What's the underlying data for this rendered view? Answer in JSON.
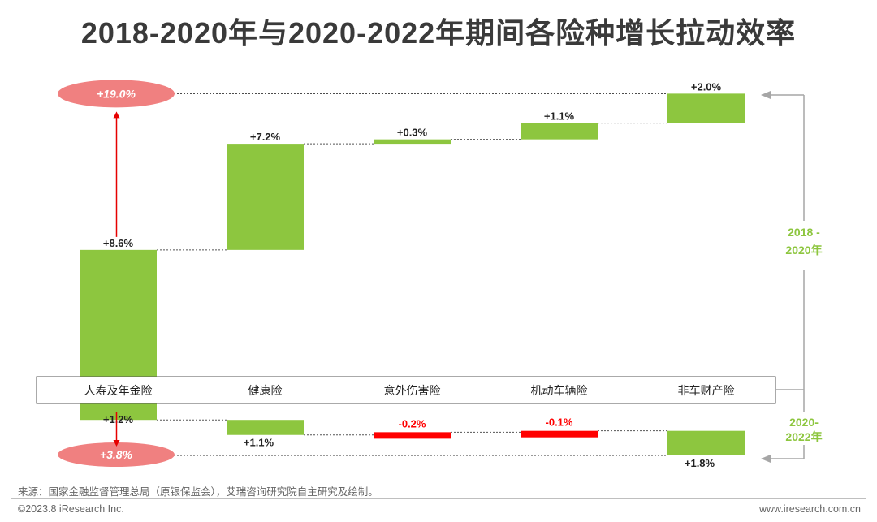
{
  "title": "2018-2020年与2020-2022年期间各险种增长拉动效率",
  "source": "来源：国家金融监督管理总局（原银保监会），艾瑞咨询研究院自主研究及绘制。",
  "copyright": "©2023.8 iResearch Inc.",
  "site": "www.iresearch.com.cn",
  "colors": {
    "positive": "#8dc63f",
    "negative": "#ff0000",
    "total_badge": "#f08080",
    "period_label": "#8dc63f",
    "arrow": "#e60000"
  },
  "chart_data": {
    "type": "bar",
    "subtype": "waterfall",
    "categories": [
      "人寿及年金险",
      "健康险",
      "意外伤害险",
      "机动车辆险",
      "非车财产险"
    ],
    "series": [
      {
        "name": "2018 - 2020年",
        "values": [
          8.6,
          7.2,
          0.3,
          1.1,
          2.0
        ],
        "labels": [
          "+8.6%",
          "+7.2%",
          "+0.3%",
          "+1.1%",
          "+2.0%"
        ],
        "total": 19.0,
        "total_label": "+19.0%",
        "period_label": [
          "2018 -",
          "2020年"
        ]
      },
      {
        "name": "2020-2022年",
        "values": [
          1.2,
          1.1,
          -0.2,
          -0.1,
          1.8
        ],
        "labels": [
          "+1.2%",
          "+1.1%",
          "-0.2%",
          "-0.1%",
          "+1.8%"
        ],
        "total": 3.8,
        "total_label": "+3.8%",
        "period_label": [
          "2020-",
          "2022年"
        ]
      }
    ]
  }
}
